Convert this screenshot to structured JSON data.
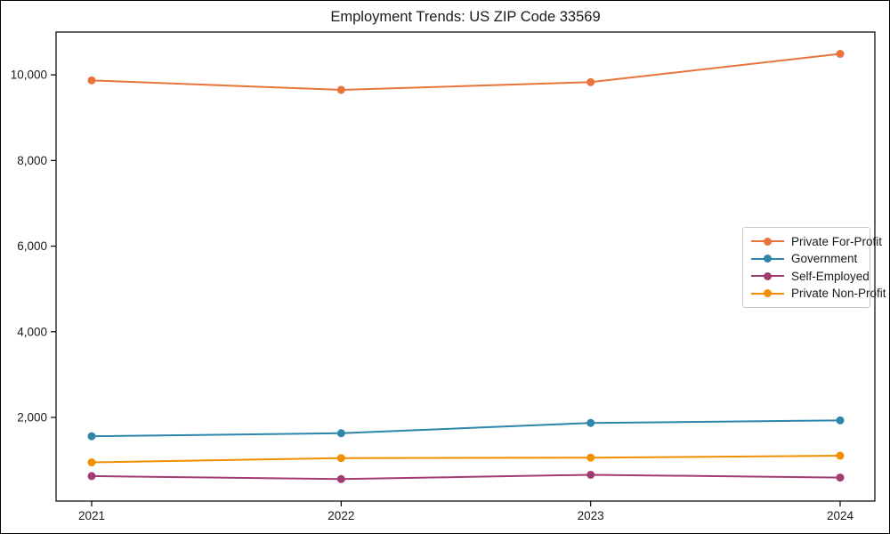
{
  "chart_data": {
    "type": "line",
    "title": "Employment Trends: US ZIP Code 33569",
    "categories": [
      "2021",
      "2022",
      "2023",
      "2024"
    ],
    "series": [
      {
        "name": "Private For-Profit",
        "color": "#E8743B",
        "values": [
          9870,
          9650,
          9830,
          10490
        ]
      },
      {
        "name": "Government",
        "color": "#2E86AB",
        "values": [
          1560,
          1630,
          1870,
          1930
        ]
      },
      {
        "name": "Self-Employed",
        "color": "#A23B72",
        "values": [
          630,
          560,
          660,
          595
        ]
      },
      {
        "name": "Private Non-Profit",
        "color": "#F18F01",
        "values": [
          950,
          1050,
          1060,
          1105
        ]
      }
    ],
    "yticks": [
      2000,
      4000,
      6000,
      8000,
      10000
    ],
    "ytick_labels": [
      "2,000",
      "4,000",
      "6,000",
      "8,000",
      "10,000"
    ],
    "ylim": [
      46,
      11000
    ],
    "xlabel": "",
    "ylabel": "",
    "grid": false,
    "legend_position": "center right",
    "axis_color": "#000000",
    "text_color": "#1a1a1a"
  }
}
